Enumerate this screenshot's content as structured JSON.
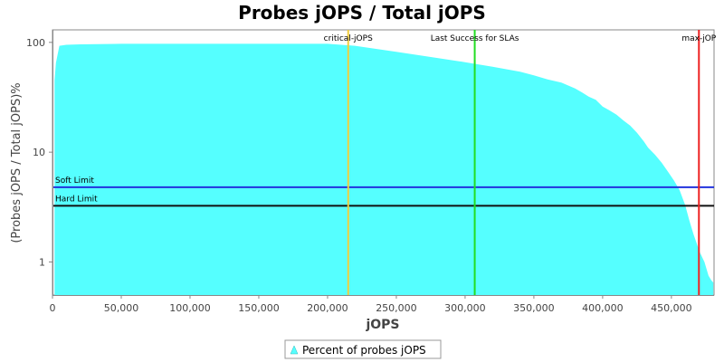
{
  "chart_data": {
    "type": "area",
    "title": "Probes jOPS / Total jOPS",
    "xlabel": "jOPS",
    "ylabel": "(Probes jOPS / Total jOPS)%",
    "xlim": [
      0,
      481000
    ],
    "ylim": [
      0.5,
      130
    ],
    "yscale": "log",
    "x_ticks": [
      {
        "value": 0,
        "label": "0"
      },
      {
        "value": 50000,
        "label": "50,000"
      },
      {
        "value": 100000,
        "label": "100,000"
      },
      {
        "value": 150000,
        "label": "150,000"
      },
      {
        "value": 200000,
        "label": "200,000"
      },
      {
        "value": 250000,
        "label": "250,000"
      },
      {
        "value": 300000,
        "label": "300,000"
      },
      {
        "value": 350000,
        "label": "350,000"
      },
      {
        "value": 400000,
        "label": "400,000"
      },
      {
        "value": 450000,
        "label": "450,000"
      }
    ],
    "y_ticks": [
      {
        "value": 1,
        "label": "1"
      },
      {
        "value": 10,
        "label": "10"
      },
      {
        "value": 100,
        "label": "100"
      }
    ],
    "series": [
      {
        "name": "Percent of probes jOPS",
        "color": "#55ffff",
        "x": [
          1500,
          2500,
          5000,
          10000,
          20000,
          50000,
          100000,
          150000,
          200000,
          220000,
          250000,
          280000,
          300000,
          320000,
          340000,
          350000,
          360000,
          370000,
          380000,
          385000,
          390000,
          395000,
          400000,
          405000,
          410000,
          415000,
          420000,
          425000,
          430000,
          433000,
          438000,
          443000,
          448000,
          452000,
          456000,
          460000,
          463000,
          466000,
          469000,
          471000,
          474000,
          477000,
          479000,
          480500
        ],
        "y": [
          45,
          65,
          93,
          95,
          96,
          97,
          97,
          97,
          97,
          93,
          82,
          72,
          66,
          60,
          54,
          50,
          46,
          43,
          38,
          35,
          32,
          30,
          26,
          24,
          22,
          19.5,
          17.5,
          15,
          12.5,
          11,
          9.5,
          8,
          6.5,
          5.5,
          4.5,
          3.3,
          2.4,
          1.8,
          1.4,
          1.2,
          1.0,
          0.75,
          0.68,
          0.65
        ]
      }
    ],
    "markers": [
      {
        "label": "critical-jOPS",
        "x": 215000,
        "color": "#f2cd3c"
      },
      {
        "label": "Last Success for SLAs",
        "x": 307000,
        "color": "#22dd22"
      },
      {
        "label": "max-jOP",
        "x": 470000,
        "color": "#ee2222"
      }
    ],
    "limits": [
      {
        "label": "Soft Limit",
        "y": 4.8,
        "color": "#2233dd"
      },
      {
        "label": "Hard Limit",
        "y": 3.25,
        "color": "#111111"
      }
    ],
    "legend": {
      "placement": "bottom-center",
      "label": "Percent of probes jOPS"
    },
    "grid": false
  }
}
